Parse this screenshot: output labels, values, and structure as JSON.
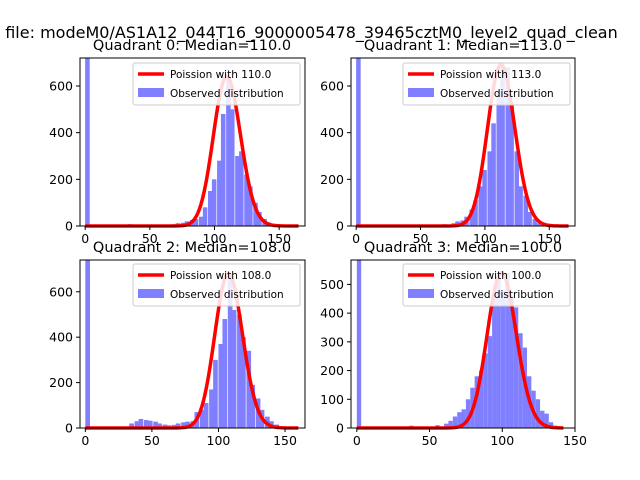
{
  "figure": {
    "suptitle": "n file: modeM0/AS1A12_044T16_9000005478_39465cztM0_level2_quad_clean",
    "colors": {
      "hist": "#7f7fff",
      "fit": "#ff0000",
      "axes": "#000000"
    }
  },
  "chart_data": [
    {
      "type": "bar",
      "title": "Quadrant 0: Median=110.0",
      "xlim": [
        -4,
        170
      ],
      "ylim": [
        0,
        720
      ],
      "xticks": [
        0,
        50,
        100,
        150
      ],
      "yticks": [
        0,
        200,
        400,
        600
      ],
      "legend": {
        "placement": "top-right",
        "entries": [
          "Poission with 110.0",
          "Observed distribution"
        ]
      },
      "series": [
        {
          "name": "Poission with 110.0",
          "kind": "line",
          "lambda": 110.0,
          "x_range": [
            0,
            165
          ]
        },
        {
          "name": "Observed distribution",
          "kind": "histogram",
          "bin_width": 3.5,
          "bins": [
            [
              0,
              720
            ],
            [
              33,
              8
            ],
            [
              50,
              6
            ],
            [
              60,
              5
            ],
            [
              67,
              8
            ],
            [
              70,
              12
            ],
            [
              74,
              14
            ],
            [
              77,
              20
            ],
            [
              81,
              26
            ],
            [
              84,
              30
            ],
            [
              88,
              40
            ],
            [
              91,
              80
            ],
            [
              95,
              150
            ],
            [
              98,
              200
            ],
            [
              102,
              280
            ],
            [
              105,
              480
            ],
            [
              109,
              640
            ],
            [
              112,
              500
            ],
            [
              116,
              300
            ],
            [
              119,
              320
            ],
            [
              123,
              220
            ],
            [
              126,
              170
            ],
            [
              130,
              100
            ],
            [
              133,
              60
            ],
            [
              137,
              30
            ],
            [
              140,
              15
            ],
            [
              144,
              8
            ]
          ]
        }
      ]
    },
    {
      "type": "bar",
      "title": "Quadrant 1: Median=113.0",
      "xlim": [
        -4,
        170
      ],
      "ylim": [
        0,
        720
      ],
      "xticks": [
        0,
        50,
        100,
        150
      ],
      "yticks": [
        0,
        200,
        400,
        600
      ],
      "legend": {
        "placement": "top-right",
        "entries": [
          "Poission with 113.0",
          "Observed distribution"
        ]
      },
      "series": [
        {
          "name": "Poission with 113.0",
          "kind": "line",
          "lambda": 113.0,
          "x_range": [
            0,
            165
          ]
        },
        {
          "name": "Observed distribution",
          "kind": "histogram",
          "bin_width": 3.5,
          "bins": [
            [
              0,
              720
            ],
            [
              30,
              6
            ],
            [
              50,
              5
            ],
            [
              67,
              8
            ],
            [
              74,
              12
            ],
            [
              77,
              20
            ],
            [
              81,
              24
            ],
            [
              84,
              40
            ],
            [
              88,
              70
            ],
            [
              91,
              110
            ],
            [
              95,
              170
            ],
            [
              98,
              240
            ],
            [
              102,
              320
            ],
            [
              105,
              440
            ],
            [
              109,
              580
            ],
            [
              112,
              690
            ],
            [
              116,
              680
            ],
            [
              119,
              520
            ],
            [
              123,
              320
            ],
            [
              126,
              170
            ],
            [
              130,
              130
            ],
            [
              133,
              60
            ],
            [
              137,
              30
            ],
            [
              140,
              12
            ],
            [
              144,
              6
            ]
          ]
        }
      ]
    },
    {
      "type": "bar",
      "title": "Quadrant 2: Median=108.0",
      "xlim": [
        -4,
        165
      ],
      "ylim": [
        0,
        740
      ],
      "xticks": [
        0,
        50,
        100,
        150
      ],
      "yticks": [
        0,
        200,
        400,
        600
      ],
      "legend": {
        "placement": "top-right",
        "entries": [
          "Poission with 108.0",
          "Observed distribution"
        ]
      },
      "series": [
        {
          "name": "Poission with 108.0",
          "kind": "line",
          "lambda": 108.0,
          "x_range": [
            0,
            160
          ]
        },
        {
          "name": "Observed distribution",
          "kind": "histogram",
          "bin_width": 3.5,
          "bins": [
            [
              0,
              740
            ],
            [
              33,
              20
            ],
            [
              37,
              30
            ],
            [
              40,
              40
            ],
            [
              44,
              35
            ],
            [
              47,
              32
            ],
            [
              51,
              28
            ],
            [
              54,
              20
            ],
            [
              58,
              15
            ],
            [
              61,
              12
            ],
            [
              65,
              14
            ],
            [
              68,
              20
            ],
            [
              72,
              25
            ],
            [
              75,
              28
            ],
            [
              79,
              30
            ],
            [
              82,
              70
            ],
            [
              86,
              80
            ],
            [
              89,
              110
            ],
            [
              93,
              170
            ],
            [
              96,
              300
            ],
            [
              100,
              370
            ],
            [
              103,
              480
            ],
            [
              107,
              680
            ],
            [
              110,
              520
            ],
            [
              114,
              500
            ],
            [
              117,
              400
            ],
            [
              121,
              340
            ],
            [
              124,
              190
            ],
            [
              128,
              130
            ],
            [
              131,
              80
            ],
            [
              135,
              50
            ],
            [
              138,
              30
            ],
            [
              142,
              15
            ]
          ]
        }
      ]
    },
    {
      "type": "bar",
      "title": "Quadrant 3: Median=100.0",
      "xlim": [
        -4,
        150
      ],
      "ylim": [
        0,
        585
      ],
      "xticks": [
        0,
        50,
        100,
        150
      ],
      "yticks": [
        0,
        100,
        200,
        300,
        400,
        500
      ],
      "legend": {
        "placement": "top-right",
        "entries": [
          "Poission with 100.0",
          "Observed distribution"
        ]
      },
      "series": [
        {
          "name": "Poission with 100.0",
          "kind": "line",
          "lambda": 100.0,
          "x_range": [
            0,
            142
          ]
        },
        {
          "name": "Observed distribution",
          "kind": "histogram",
          "bin_width": 3.0,
          "bins": [
            [
              0,
              585
            ],
            [
              36,
              8
            ],
            [
              54,
              10
            ],
            [
              60,
              15
            ],
            [
              63,
              25
            ],
            [
              66,
              40
            ],
            [
              69,
              55
            ],
            [
              72,
              65
            ],
            [
              75,
              100
            ],
            [
              78,
              140
            ],
            [
              81,
              180
            ],
            [
              84,
              200
            ],
            [
              87,
              260
            ],
            [
              90,
              320
            ],
            [
              93,
              450
            ],
            [
              96,
              520
            ],
            [
              99,
              480
            ],
            [
              102,
              540
            ],
            [
              105,
              460
            ],
            [
              108,
              420
            ],
            [
              111,
              330
            ],
            [
              114,
              280
            ],
            [
              117,
              180
            ],
            [
              120,
              130
            ],
            [
              123,
              100
            ],
            [
              126,
              60
            ],
            [
              129,
              50
            ],
            [
              132,
              20
            ],
            [
              135,
              8
            ]
          ]
        }
      ]
    }
  ]
}
